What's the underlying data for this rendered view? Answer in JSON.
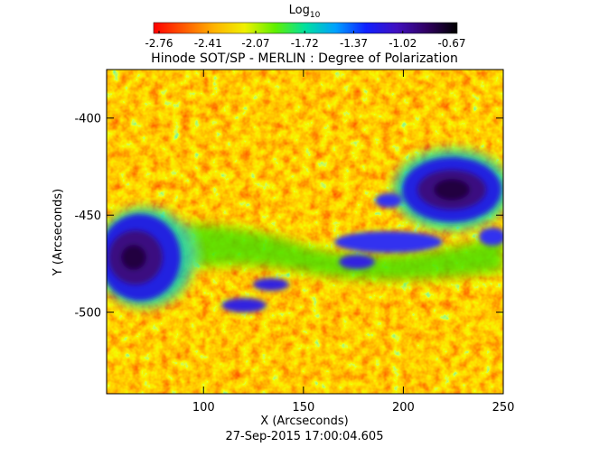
{
  "chart_data": {
    "type": "image",
    "title": "Hinode SOT/SP - MERLIN : Degree of Polarization",
    "x_label": "X (Arcseconds)",
    "y_label": "Y (Arcseconds)",
    "subtitle": "27-Sep-2015 17:00:04.605",
    "colorbar_label": "Log",
    "colorbar_label_sub": "10",
    "colorbar_lim": [
      -2.76,
      -0.67
    ],
    "colorbar_ticks": [
      -2.76,
      -2.41,
      -2.07,
      -1.72,
      -1.37,
      -1.02,
      -0.67
    ],
    "colormap": [
      "#ff0000",
      "#ff5a00",
      "#ffb400",
      "#f0f000",
      "#60f000",
      "#00e0a0",
      "#00a0ff",
      "#1020ff",
      "#4010c0",
      "#300060",
      "#000000"
    ],
    "xlim": [
      51.5,
      250
    ],
    "xticks": [
      100,
      150,
      200,
      250
    ],
    "ylim": [
      -542,
      -375
    ],
    "yticks": [
      -400,
      -450,
      -500
    ]
  }
}
